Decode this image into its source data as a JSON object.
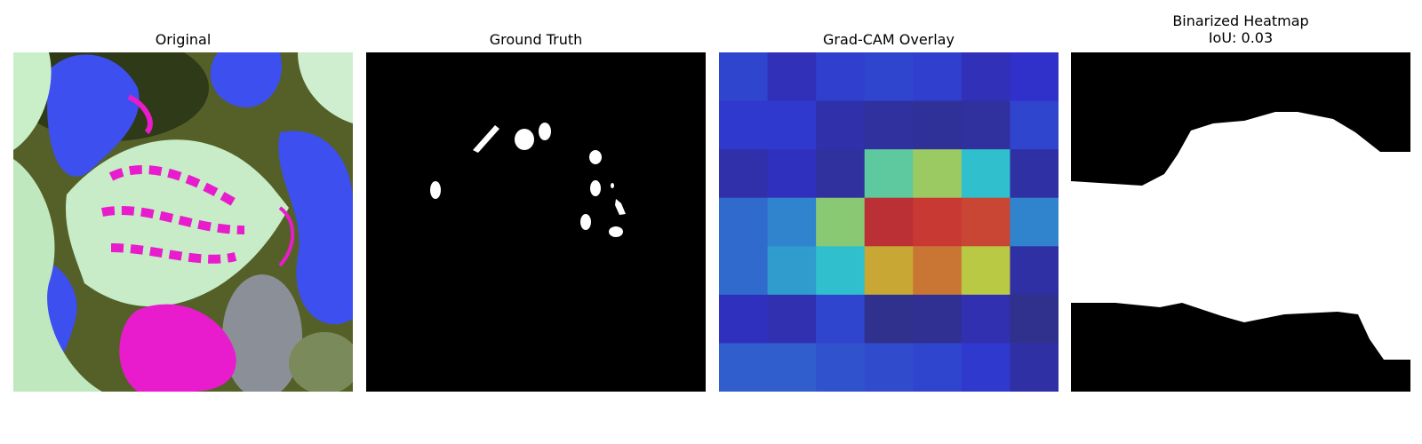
{
  "figure": {
    "panels": [
      {
        "title": "Original",
        "subtitle": ""
      },
      {
        "title": "Ground Truth",
        "subtitle": ""
      },
      {
        "title": "Grad-CAM Overlay",
        "subtitle": ""
      },
      {
        "title": "Binarized Heatmap",
        "subtitle": "IoU: 0.03"
      }
    ]
  },
  "chart_data": [
    {
      "type": "image",
      "title": "Original",
      "description_colors": [
        "#c8efc8",
        "#e81ccc",
        "#3a4cf0",
        "#4a5a22",
        "#8a8f9a"
      ]
    },
    {
      "type": "image",
      "title": "Ground Truth",
      "colors": {
        "background": "#000000",
        "mask": "#ffffff"
      }
    },
    {
      "type": "heatmap",
      "title": "Grad-CAM Overlay",
      "colormap": "jet",
      "grid": [
        [
          0.16,
          0.09,
          0.15,
          0.16,
          0.15,
          0.09,
          0.12
        ],
        [
          0.14,
          0.14,
          0.07,
          0.05,
          0.04,
          0.05,
          0.16
        ],
        [
          0.07,
          0.1,
          0.05,
          0.45,
          0.55,
          0.36,
          0.06
        ],
        [
          0.22,
          0.26,
          0.52,
          0.9,
          0.86,
          0.84,
          0.26
        ],
        [
          0.22,
          0.3,
          0.36,
          0.68,
          0.76,
          0.6,
          0.06
        ],
        [
          0.1,
          0.08,
          0.16,
          0.02,
          0.03,
          0.08,
          0.02
        ],
        [
          0.2,
          0.2,
          0.18,
          0.17,
          0.16,
          0.14,
          0.06
        ]
      ]
    },
    {
      "type": "image",
      "title": "Binarized Heatmap",
      "subtitle": "IoU: 0.03",
      "iou": 0.03,
      "colors": {
        "background": "#000000",
        "mask": "#ffffff"
      }
    }
  ]
}
